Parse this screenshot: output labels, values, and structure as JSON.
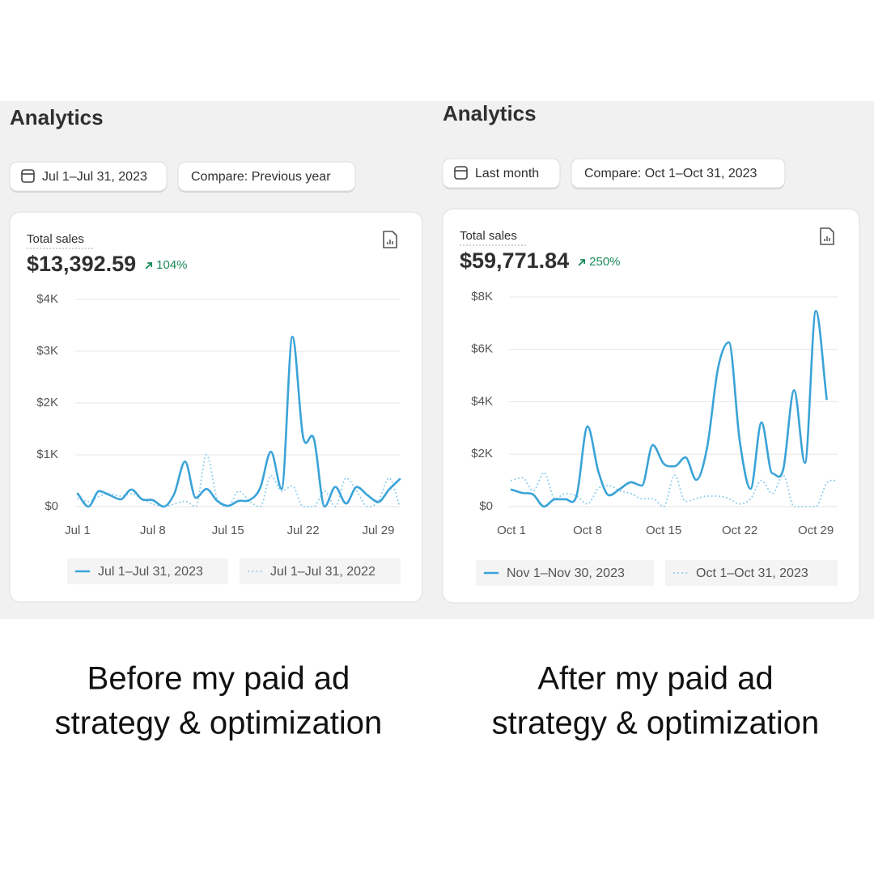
{
  "panels": [
    {
      "heading": "Analytics",
      "date_range": "Jul 1–Jul 31, 2023",
      "compare": "Compare: Previous year",
      "total": "$13,392.59",
      "change": "104%",
      "caption": [
        "Before my paid ad",
        "strategy & optimization"
      ]
    },
    {
      "heading": "Analytics",
      "date_range": "Last month",
      "compare": "Compare: Oct 1–Oct 31, 2023",
      "total": "$59,771.84",
      "change": "250%",
      "caption": [
        "After my paid ad",
        "strategy & optimization"
      ]
    }
  ],
  "chart_data": [
    {
      "type": "line",
      "title": "Total sales",
      "categories": [
        "Jul 1",
        null,
        null,
        null,
        null,
        null,
        null,
        "Jul 8",
        null,
        null,
        null,
        null,
        null,
        null,
        "Jul 15",
        null,
        null,
        null,
        null,
        null,
        null,
        "Jul 22",
        null,
        null,
        null,
        null,
        null,
        null,
        "Jul 29",
        null,
        null
      ],
      "ylim": [
        0,
        4000
      ],
      "yticks": [
        {
          "value": 0,
          "label": "$0"
        },
        {
          "value": 1000,
          "label": "$1K"
        },
        {
          "value": 2000,
          "label": "$2K"
        },
        {
          "value": 3000,
          "label": "$3K"
        },
        {
          "value": 4000,
          "label": "$4K"
        }
      ],
      "grid": true,
      "series": [
        {
          "name": "Jul 1–Jul 31, 2023",
          "color": "#3aa3d8",
          "style": "solid",
          "values": [
            250,
            0,
            300,
            220,
            140,
            330,
            140,
            125,
            0,
            250,
            870,
            170,
            340,
            110,
            15,
            110,
            125,
            360,
            1060,
            340,
            3280,
            1340,
            1310,
            0,
            380,
            60,
            380,
            220,
            90,
            330,
            530
          ]
        },
        {
          "name": "Jul 1–Jul 31, 2022",
          "color": "#8fcdee",
          "style": "dotted",
          "values": [
            150,
            100,
            200,
            250,
            200,
            250,
            150,
            50,
            0,
            50,
            100,
            0,
            1000,
            150,
            0,
            300,
            100,
            0,
            600,
            300,
            400,
            0,
            0,
            300,
            0,
            550,
            300,
            0,
            100,
            550,
            0
          ]
        }
      ]
    },
    {
      "type": "line",
      "title": "Total sales",
      "categories": [
        "Oct 1",
        null,
        null,
        null,
        null,
        null,
        null,
        "Oct 8",
        null,
        null,
        null,
        null,
        null,
        null,
        "Oct 15",
        null,
        null,
        null,
        null,
        null,
        null,
        "Oct 22",
        null,
        null,
        null,
        null,
        null,
        null,
        "Oct 29",
        null,
        null
      ],
      "ylim": [
        0,
        8000
      ],
      "yticks": [
        {
          "value": 0,
          "label": "$0"
        },
        {
          "value": 2000,
          "label": "$2K"
        },
        {
          "value": 4000,
          "label": "$4K"
        },
        {
          "value": 6000,
          "label": "$6K"
        },
        {
          "value": 8000,
          "label": "$8K"
        }
      ],
      "grid": true,
      "series": [
        {
          "name": "Nov 1–Nov 30, 2023",
          "color": "#3aa3d8",
          "style": "solid",
          "values": [
            650,
            520,
            460,
            0,
            280,
            280,
            430,
            3060,
            1330,
            430,
            680,
            930,
            800,
            2350,
            1640,
            1540,
            1880,
            1020,
            2260,
            5280,
            6270,
            2500,
            680,
            3210,
            1270,
            1420,
            4440,
            1670,
            7470,
            4100,
            null
          ]
        },
        {
          "name": "Oct 1–Oct 31, 2023",
          "color": "#8fcdee",
          "style": "dotted",
          "values": [
            1000,
            1100,
            600,
            1300,
            300,
            500,
            400,
            100,
            700,
            800,
            600,
            500,
            300,
            300,
            0,
            1200,
            200,
            300,
            400,
            400,
            300,
            100,
            300,
            1000,
            500,
            1200,
            0,
            0,
            0,
            900,
            1000
          ]
        }
      ]
    }
  ]
}
